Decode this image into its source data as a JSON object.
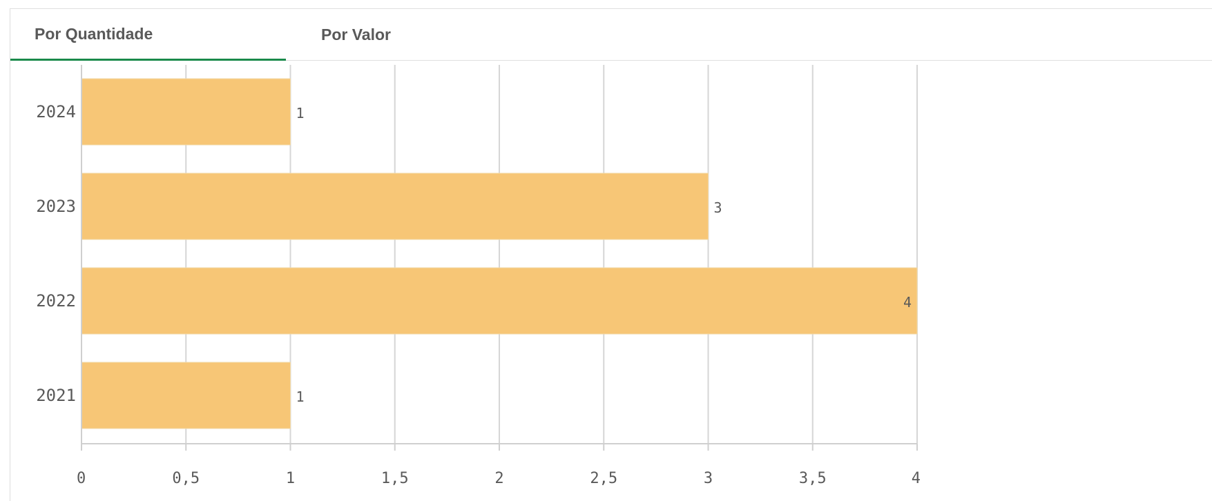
{
  "tabs": [
    {
      "label": "Por Quantidade",
      "active": true
    },
    {
      "label": "Por Valor",
      "active": false
    }
  ],
  "colors": {
    "bar": "#f7c676",
    "bar_stroke": "#f2d9a8",
    "grid": "#d6d6d6",
    "axis": "#cfcfcf",
    "text": "#595959",
    "tab_indicator": "#1a8a4a"
  },
  "chart_data": {
    "type": "bar",
    "orientation": "horizontal",
    "categories": [
      "2024",
      "2023",
      "2022",
      "2021"
    ],
    "values": [
      1,
      3,
      4,
      1
    ],
    "value_labels": [
      "1",
      "3",
      "4",
      "1"
    ],
    "xlim": [
      0,
      4
    ],
    "xticks": [
      0,
      0.5,
      1,
      1.5,
      2,
      2.5,
      3,
      3.5,
      4
    ],
    "xtick_labels": [
      "0",
      "0,5",
      "1",
      "1,5",
      "2",
      "2,5",
      "3",
      "3,5",
      "4"
    ],
    "grid": true,
    "title": "",
    "xlabel": "",
    "ylabel": ""
  }
}
